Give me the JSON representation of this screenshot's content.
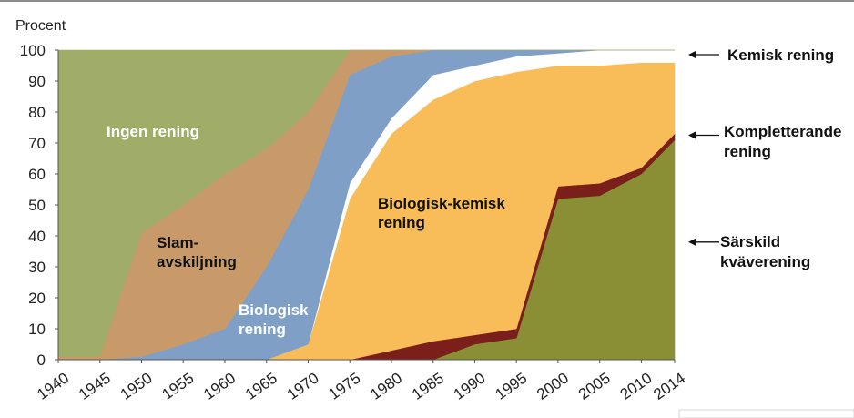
{
  "chart_data": {
    "type": "area",
    "stacked": true,
    "ylabel": "Procent",
    "ylim": [
      0,
      100
    ],
    "yticks": [
      0,
      10,
      20,
      30,
      40,
      50,
      60,
      70,
      80,
      90,
      100
    ],
    "x": [
      1940,
      1945,
      1950,
      1955,
      1960,
      1965,
      1970,
      1975,
      1980,
      1985,
      1990,
      1995,
      2000,
      2005,
      2010,
      2014
    ],
    "xtick_labels": [
      "1940",
      "1945",
      "1950",
      "1955",
      "1960",
      "1965",
      "1970",
      "1975",
      "1980",
      "1985",
      "1990",
      "1995",
      "2000",
      "2005",
      "2010",
      "2014"
    ],
    "series": [
      {
        "key": "sarskild",
        "color": "#8a8f35",
        "values": [
          0,
          0,
          0,
          0,
          0,
          0,
          0,
          0,
          0,
          0,
          5,
          7,
          52,
          53,
          60,
          71
        ]
      },
      {
        "key": "kompletterande",
        "color": "#7b1f1a",
        "values": [
          0,
          0,
          0,
          0,
          0,
          0,
          0,
          0,
          3,
          6,
          3,
          3,
          4,
          4,
          2,
          2
        ]
      },
      {
        "key": "biologisk_kemisk",
        "color": "#f8bd58",
        "values": [
          0,
          0,
          0,
          0,
          0,
          0,
          5,
          52,
          70,
          78,
          82,
          83,
          39,
          38,
          34,
          23
        ]
      },
      {
        "key": "kemisk",
        "color": "#ffffff",
        "values": [
          0,
          0,
          0,
          0,
          0,
          0,
          0,
          5,
          5,
          8,
          5,
          5,
          4,
          5,
          4,
          4
        ]
      },
      {
        "key": "biologisk",
        "color": "#7f9fc7",
        "values": [
          0,
          0,
          1,
          5,
          10,
          30,
          50,
          35,
          20,
          8,
          5,
          2,
          1,
          0,
          0,
          0
        ]
      },
      {
        "key": "slam",
        "color": "#c99a69",
        "values": [
          1,
          1,
          40,
          45,
          50,
          38,
          25,
          8,
          2,
          0,
          0,
          0,
          0,
          0,
          0,
          0
        ]
      },
      {
        "key": "ingen",
        "color": "#a0ad68",
        "values": [
          99,
          99,
          59,
          50,
          40,
          32,
          20,
          0,
          0,
          0,
          0,
          0,
          0,
          0,
          0,
          0
        ]
      }
    ],
    "area_labels": [
      {
        "key": "ingen",
        "lines": [
          "Ingen rening"
        ],
        "color": "#ffffff"
      },
      {
        "key": "slam",
        "lines": [
          "Slam-",
          "avskiljning"
        ],
        "color": "#111111"
      },
      {
        "key": "biologisk",
        "lines": [
          "Biologisk",
          "rening"
        ],
        "color": "#ffffff"
      },
      {
        "key": "biologisk_kemisk",
        "lines": [
          "Biologisk-kemisk",
          "rening"
        ],
        "color": "#111111"
      }
    ],
    "side_labels": [
      {
        "key": "kemisk",
        "lines": [
          "Kemisk rening"
        ],
        "arrow_at": 99
      },
      {
        "key": "kompletterande",
        "lines": [
          "Kompletterande",
          "rening"
        ],
        "arrow_at": 72.5
      },
      {
        "key": "sarskild",
        "lines": [
          "Särskild",
          "kväverening"
        ],
        "arrow_at": 38
      }
    ]
  }
}
